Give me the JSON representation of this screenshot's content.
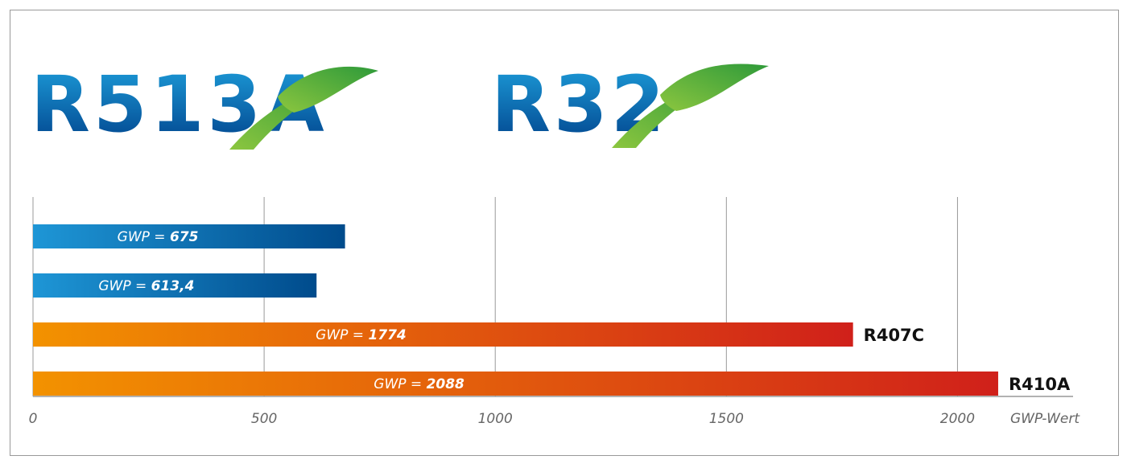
{
  "chart_data": {
    "type": "bar",
    "orientation": "horizontal",
    "titles": [
      "R513A",
      "R32"
    ],
    "categories": [
      null,
      null,
      "R407C",
      "R410A"
    ],
    "values": [
      675,
      613.4,
      1774,
      2088
    ],
    "value_label_prefix": "GWP = ",
    "value_labels": [
      "675",
      "613,4",
      "1774",
      "2088"
    ],
    "bar_colors": [
      [
        "#1e96d6",
        "#004b8c"
      ],
      [
        "#1e96d6",
        "#004b8c"
      ],
      [
        "#f39200",
        "#d0201a"
      ],
      [
        "#f39200",
        "#d0201a"
      ]
    ],
    "xlim": [
      0,
      2250
    ],
    "xticks": [
      0,
      500,
      1000,
      1500,
      2000
    ],
    "x_axis_label": "GWP-Wert",
    "grid": true
  }
}
